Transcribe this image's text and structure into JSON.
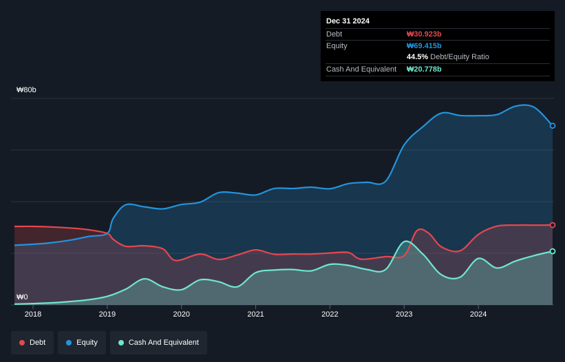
{
  "tooltip": {
    "date": "Dec 31 2024",
    "debt_label": "Debt",
    "debt_value": "₩30.923b",
    "equity_label": "Equity",
    "equity_value": "₩69.415b",
    "ratio_value": "44.5%",
    "ratio_label": "Debt/Equity Ratio",
    "cash_label": "Cash And Equivalent",
    "cash_value": "₩20.778b"
  },
  "legend": {
    "debt": "Debt",
    "equity": "Equity",
    "cash": "Cash And Equivalent"
  },
  "colors": {
    "debt": "#e5474f",
    "equity": "#2394df",
    "cash": "#6fe6d0",
    "background": "#151b24"
  },
  "chart_data": {
    "type": "area",
    "y_axis_labels": [
      "₩80b",
      "₩0"
    ],
    "ylim": [
      0,
      80
    ],
    "y_unit": "₩ billion",
    "x_tick_labels": [
      "2018",
      "2019",
      "2020",
      "2021",
      "2022",
      "2023",
      "2024"
    ],
    "xlim": [
      2017.75,
      2025.0
    ],
    "grid": true,
    "legend_position": "bottom-left",
    "series": [
      {
        "name": "Debt",
        "color": "#e5474f",
        "points": [
          [
            2017.75,
            30.4
          ],
          [
            2018.0,
            30.4
          ],
          [
            2018.25,
            30.2
          ],
          [
            2018.5,
            29.8
          ],
          [
            2018.75,
            29.1
          ],
          [
            2019.0,
            27.7
          ],
          [
            2019.08,
            25.4
          ],
          [
            2019.25,
            22.7
          ],
          [
            2019.5,
            22.9
          ],
          [
            2019.75,
            21.7
          ],
          [
            2019.92,
            17.2
          ],
          [
            2020.25,
            19.7
          ],
          [
            2020.5,
            17.6
          ],
          [
            2020.75,
            19.3
          ],
          [
            2021.0,
            21.3
          ],
          [
            2021.25,
            19.6
          ],
          [
            2021.5,
            19.7
          ],
          [
            2021.75,
            19.7
          ],
          [
            2022.0,
            20.1
          ],
          [
            2022.25,
            20.3
          ],
          [
            2022.42,
            17.7
          ],
          [
            2022.75,
            18.7
          ],
          [
            2023.0,
            19.1
          ],
          [
            2023.17,
            28.7
          ],
          [
            2023.33,
            27.8
          ],
          [
            2023.5,
            22.5
          ],
          [
            2023.75,
            20.9
          ],
          [
            2024.0,
            27.3
          ],
          [
            2024.25,
            30.5
          ],
          [
            2024.5,
            30.9
          ],
          [
            2024.75,
            30.9
          ],
          [
            2025.0,
            30.923
          ]
        ]
      },
      {
        "name": "Equity",
        "color": "#2394df",
        "points": [
          [
            2017.75,
            23.1
          ],
          [
            2018.0,
            23.5
          ],
          [
            2018.25,
            24.1
          ],
          [
            2018.5,
            25.1
          ],
          [
            2018.75,
            26.5
          ],
          [
            2019.0,
            27.7
          ],
          [
            2019.08,
            33.5
          ],
          [
            2019.25,
            38.8
          ],
          [
            2019.5,
            38.0
          ],
          [
            2019.75,
            37.2
          ],
          [
            2020.0,
            38.9
          ],
          [
            2020.25,
            39.8
          ],
          [
            2020.5,
            43.5
          ],
          [
            2020.75,
            43.3
          ],
          [
            2021.0,
            42.6
          ],
          [
            2021.25,
            45.1
          ],
          [
            2021.5,
            45.1
          ],
          [
            2021.75,
            45.6
          ],
          [
            2022.0,
            45.0
          ],
          [
            2022.25,
            47.0
          ],
          [
            2022.5,
            47.5
          ],
          [
            2022.75,
            47.9
          ],
          [
            2023.0,
            62.0
          ],
          [
            2023.25,
            69.0
          ],
          [
            2023.5,
            74.3
          ],
          [
            2023.75,
            73.4
          ],
          [
            2024.0,
            73.3
          ],
          [
            2024.25,
            73.7
          ],
          [
            2024.5,
            77.0
          ],
          [
            2024.75,
            76.6
          ],
          [
            2025.0,
            69.415
          ]
        ]
      },
      {
        "name": "Cash And Equivalent",
        "color": "#6fe6d0",
        "points": [
          [
            2017.75,
            0.3
          ],
          [
            2018.0,
            0.5
          ],
          [
            2018.25,
            0.8
          ],
          [
            2018.5,
            1.3
          ],
          [
            2018.75,
            2.0
          ],
          [
            2019.0,
            3.3
          ],
          [
            2019.25,
            6.1
          ],
          [
            2019.5,
            10.1
          ],
          [
            2019.75,
            7.0
          ],
          [
            2020.0,
            5.9
          ],
          [
            2020.25,
            9.7
          ],
          [
            2020.5,
            9.0
          ],
          [
            2020.75,
            7.0
          ],
          [
            2021.0,
            12.5
          ],
          [
            2021.25,
            13.5
          ],
          [
            2021.5,
            13.7
          ],
          [
            2021.75,
            13.2
          ],
          [
            2022.0,
            15.7
          ],
          [
            2022.25,
            15.3
          ],
          [
            2022.5,
            13.7
          ],
          [
            2022.75,
            13.7
          ],
          [
            2023.0,
            24.5
          ],
          [
            2023.25,
            19.7
          ],
          [
            2023.5,
            11.7
          ],
          [
            2023.75,
            10.7
          ],
          [
            2024.0,
            18.0
          ],
          [
            2024.25,
            14.3
          ],
          [
            2024.5,
            17.0
          ],
          [
            2024.75,
            19.1
          ],
          [
            2025.0,
            20.778
          ]
        ]
      }
    ]
  }
}
